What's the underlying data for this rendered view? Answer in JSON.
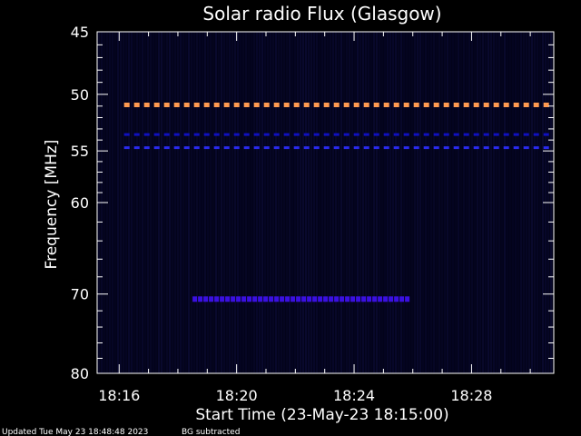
{
  "chart_data": {
    "type": "heatmap",
    "title": "Solar radio Flux (Glasgow)",
    "xlabel": "Start Time (23-May-23 18:15:00)",
    "ylabel": "Frequency [MHz]",
    "x_range_minutes": [
      18.25,
      18.5
    ],
    "x_ticks": [
      {
        "label": "18:16",
        "value": "18:16"
      },
      {
        "label": "18:20",
        "value": "18:20"
      },
      {
        "label": "18:24",
        "value": "18:24"
      },
      {
        "label": "18:28",
        "value": "18:28"
      }
    ],
    "y_scale": "log",
    "ylim": [
      80,
      45
    ],
    "y_ticks": [
      45,
      50,
      55,
      60,
      70,
      80
    ],
    "background_color": "#000000",
    "features": [
      {
        "frequency": 50.9,
        "from": "18:16:10",
        "to": "18:30:40",
        "color": "#ff9a50",
        "style": "dashed"
      },
      {
        "frequency": 53.5,
        "from": "18:16:10",
        "to": "18:30:40",
        "color": "#1010c0",
        "style": "dashed"
      },
      {
        "frequency": 54.7,
        "from": "18:16:10",
        "to": "18:30:40",
        "color": "#2a2af0",
        "style": "dashed"
      },
      {
        "frequency": 70.6,
        "from": "18:18:30",
        "to": "18:25:50",
        "color": "#3a10e0",
        "style": "dashed"
      }
    ]
  },
  "footer": {
    "updated": "Updated Tue May 23 18:48:48 2023",
    "bg_note": "BG subtracted"
  }
}
